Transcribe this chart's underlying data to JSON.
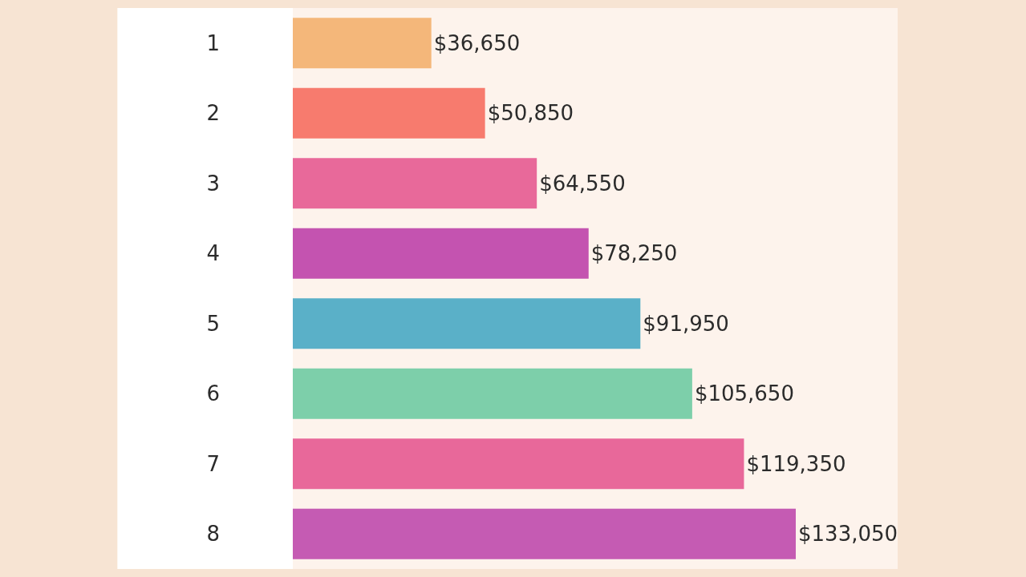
{
  "chart_data": {
    "type": "bar",
    "orientation": "horizontal",
    "categories": [
      "1",
      "2",
      "3",
      "4",
      "5",
      "6",
      "7",
      "8"
    ],
    "values": [
      36650,
      50850,
      64550,
      78250,
      91950,
      105650,
      119350,
      133050
    ],
    "colors": [
      "#f4b77a",
      "#f77b6e",
      "#e8699a",
      "#c453b0",
      "#5ab0c8",
      "#7dcfaa",
      "#e8689a",
      "#c55bb3"
    ],
    "value_labels": [
      "$36,650",
      "$50,850",
      "$64,550",
      "$78,250",
      "$91,950",
      "$105,650",
      "$119,350",
      "$133,050"
    ],
    "xlim": [
      0,
      160000
    ],
    "tick_labels": "y",
    "grid": false,
    "legend": false
  }
}
